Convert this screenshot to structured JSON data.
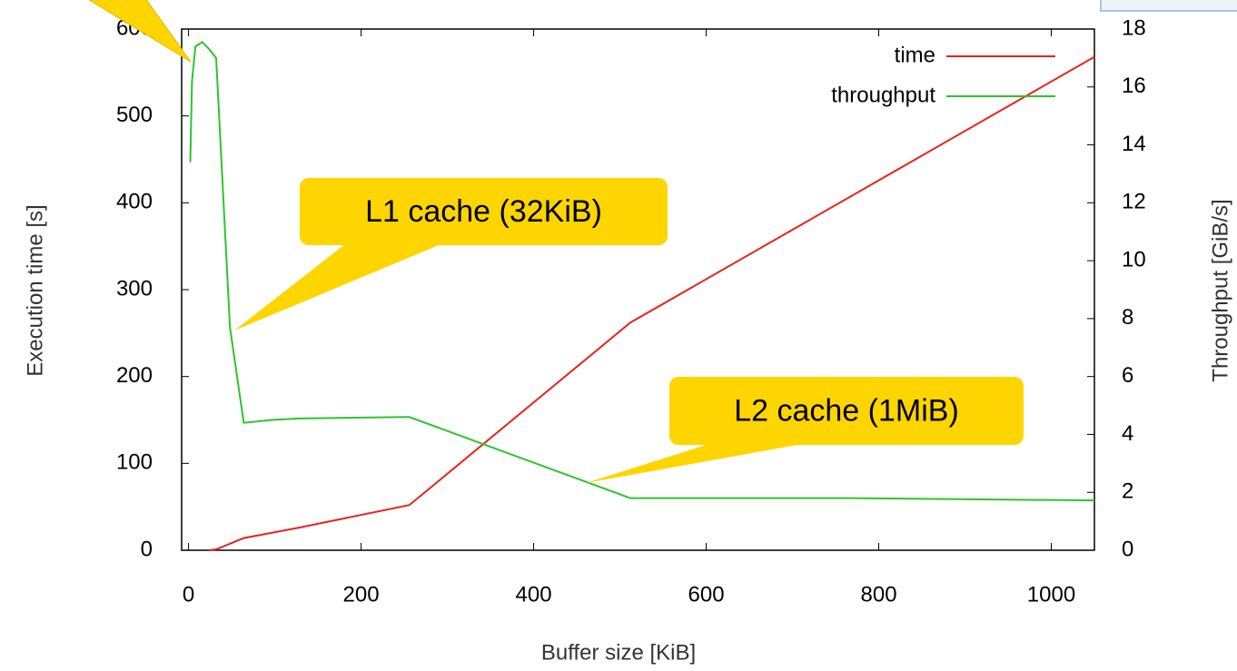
{
  "chart_data": {
    "type": "line",
    "xlabel": "Buffer size [KiB]",
    "ylabel": "Execution time [s]",
    "y2label": "Throughput [GiB/s]",
    "xlim": [
      -8,
      1050
    ],
    "xticks": [
      0,
      200,
      400,
      600,
      800,
      1000
    ],
    "ylim": [
      0,
      600
    ],
    "yticks": [
      0,
      100,
      200,
      300,
      400,
      500,
      600
    ],
    "y2lim": [
      0,
      18
    ],
    "y2ticks": [
      0,
      2,
      4,
      6,
      8,
      10,
      12,
      14,
      16,
      18
    ],
    "legend": "upper right",
    "series": [
      {
        "name": "time",
        "color": "#e8231f",
        "x": [
          24,
          32,
          64,
          128,
          256,
          512,
          1050
        ],
        "values": [
          0,
          1,
          14,
          26,
          52,
          262,
          568
        ]
      },
      {
        "name": "throughput",
        "color": "#2ec42e",
        "axis": "y2",
        "x": [
          2,
          4,
          8,
          16,
          24,
          32,
          48,
          64,
          96,
          128,
          192,
          256,
          512,
          768,
          1050
        ],
        "values": [
          13.4,
          16.2,
          17.4,
          17.55,
          17.3,
          17.0,
          7.7,
          4.4,
          4.5,
          4.55,
          4.58,
          4.6,
          1.8,
          1.8,
          1.72
        ]
      }
    ],
    "annotations": [
      "L1 cache (32KiB)",
      "L2 cache (1MiB)"
    ]
  }
}
